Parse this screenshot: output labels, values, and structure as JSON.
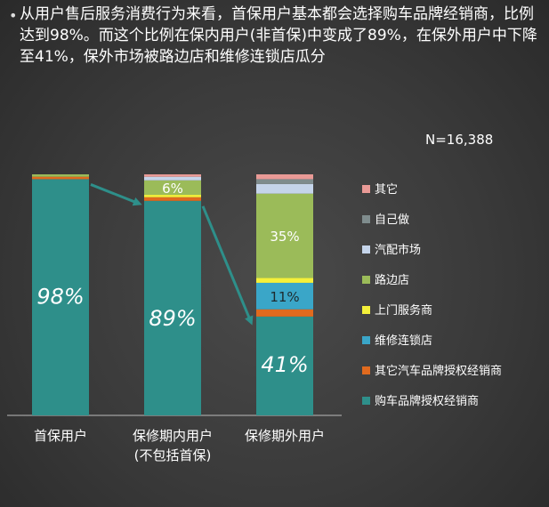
{
  "headline": "从用户售后服务消费行为来看，首保用户基本都会选择购车品牌经销商，比例达到98%。而这个比例在保内用户(非首保)中变成了89%，在保外用户中下降至41%，保外市场被路边店和维修连锁店瓜分",
  "sample_size": "N=16,388",
  "colors": {
    "购车品牌授权经销商": "#2e8f8a",
    "其它汽车品牌授权经销商": "#e06a1e",
    "维修连锁店": "#3aa6c8",
    "上门服务商": "#f4f03a",
    "路边店": "#9bbb59",
    "汽配市场": "#c5d4ea",
    "自己做": "#7f8c8d",
    "其它": "#e99a96"
  },
  "chart_data": {
    "type": "bar",
    "stacked": true,
    "categories": [
      "首保用户",
      "保修期内用户\n(不包括首保)",
      "保修期外用户"
    ],
    "series": [
      {
        "name": "购车品牌授权经销商",
        "values": [
          98,
          89,
          41
        ],
        "labels": [
          "98%",
          "89%",
          "41%"
        ]
      },
      {
        "name": "其它汽车品牌授权经销商",
        "values": [
          1,
          1.5,
          3
        ]
      },
      {
        "name": "维修连锁店",
        "values": [
          0,
          0,
          11
        ],
        "labels": [
          "",
          "",
          "11%"
        ]
      },
      {
        "name": "上门服务商",
        "values": [
          0,
          1,
          2
        ]
      },
      {
        "name": "路边店",
        "values": [
          1,
          6,
          35
        ],
        "labels": [
          "",
          "6%",
          "35%"
        ]
      },
      {
        "name": "汽配市场",
        "values": [
          0,
          1.5,
          4
        ]
      },
      {
        "name": "自己做",
        "values": [
          0,
          0,
          2
        ]
      },
      {
        "name": "其它",
        "values": [
          0,
          1,
          2
        ]
      }
    ],
    "legend_order": [
      "其它",
      "自己做",
      "汽配市场",
      "路边店",
      "上门服务商",
      "维修连锁店",
      "其它汽车品牌授权经销商",
      "购车品牌授权经销商"
    ],
    "legend_position": "right",
    "ylim": [
      0,
      100
    ],
    "grid": false
  }
}
